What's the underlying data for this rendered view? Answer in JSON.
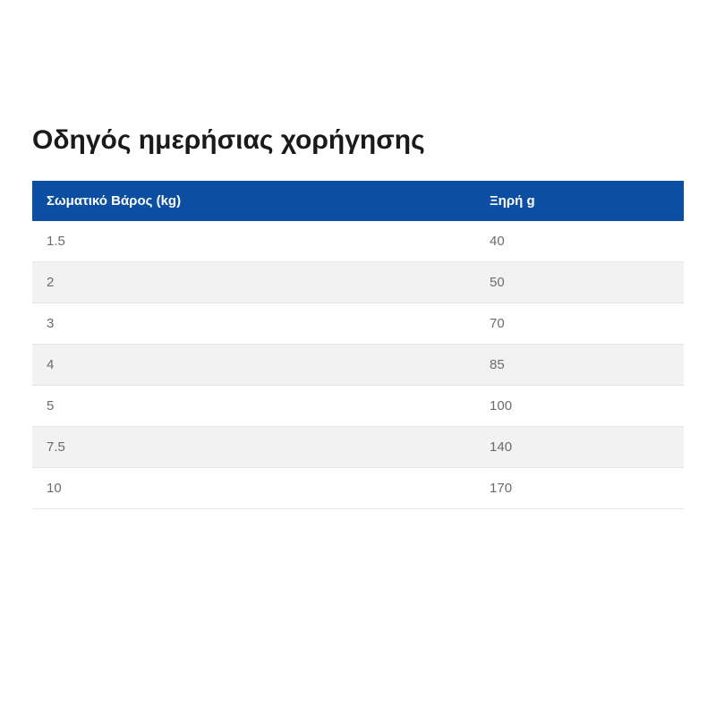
{
  "title": "Οδηγός ημερήσιας χορήγησης",
  "table": {
    "type": "table",
    "header_bg": "#0b4ea2",
    "header_text_color": "#ffffff",
    "row_alt_bg": "#f2f2f2",
    "row_bg": "#ffffff",
    "cell_text_color": "#6b6b6b",
    "border_color": "#e6e6e6",
    "header_fontsize": 15,
    "cell_fontsize": 15,
    "columns": [
      {
        "label": "Σωματικό Βάρος (kg)",
        "width": "68%"
      },
      {
        "label": "Ξηρή g",
        "width": "32%"
      }
    ],
    "rows": [
      [
        "1.5",
        "40"
      ],
      [
        "2",
        "50"
      ],
      [
        "3",
        "70"
      ],
      [
        "4",
        "85"
      ],
      [
        "5",
        "100"
      ],
      [
        "7.5",
        "140"
      ],
      [
        "10",
        "170"
      ]
    ]
  }
}
